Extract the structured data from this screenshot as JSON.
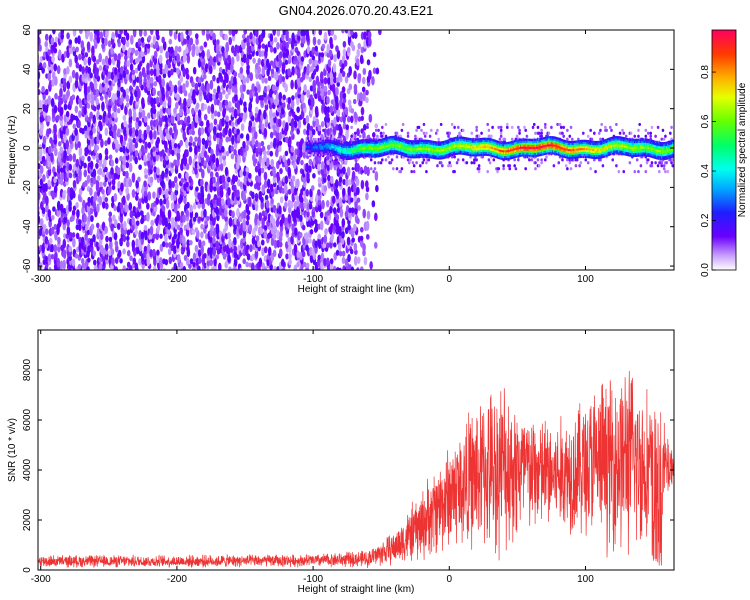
{
  "title": "GN04.2026.070.20.43.E21",
  "chart_data": [
    {
      "type": "heatmap",
      "xlabel": "Height of straight line (km)",
      "ylabel": "Frequency (Hz)",
      "xlim": [
        -302,
        165
      ],
      "ylim": [
        -62,
        60
      ],
      "xticks": [
        -300,
        -200,
        -100,
        0,
        100
      ],
      "yticks": [
        -60,
        -40,
        -20,
        0,
        20,
        40,
        60
      ],
      "colorbar": {
        "label": "Normalized spectral amplitude",
        "range": [
          0.0,
          0.97
        ],
        "ticks": [
          "0.0",
          "0.2",
          "0.4",
          "0.6",
          "0.8"
        ],
        "tick_values": [
          0.0,
          0.2,
          0.4,
          0.6,
          0.8
        ],
        "colormap": "rainbow"
      },
      "band": {
        "x_start": -100,
        "x_end": 165,
        "center_freq": 0,
        "half_width": 4,
        "peak_x": 65
      },
      "noise_region": {
        "x_start": -302,
        "x_end": -50,
        "frequency_range": [
          -62,
          60
        ]
      }
    },
    {
      "type": "line",
      "xlabel": "Height of straight line (km)",
      "ylabel": "SNR (10 * v/v)",
      "xlim": [
        -302,
        165
      ],
      "ylim": [
        0,
        9600
      ],
      "xticks": [
        -300,
        -200,
        -100,
        0,
        100
      ],
      "yticks": [
        0,
        2000,
        4000,
        6000,
        8000
      ],
      "series": [
        {
          "color": "#ee3333",
          "envelope": [
            {
              "x": -300,
              "mean": 350,
              "amp": 250
            },
            {
              "x": -200,
              "mean": 350,
              "amp": 250
            },
            {
              "x": -100,
              "mean": 380,
              "amp": 260
            },
            {
              "x": -60,
              "mean": 450,
              "amp": 350
            },
            {
              "x": -40,
              "mean": 900,
              "amp": 700
            },
            {
              "x": -20,
              "mean": 1800,
              "amp": 1500
            },
            {
              "x": 0,
              "mean": 3000,
              "amp": 2200
            },
            {
              "x": 20,
              "mean": 3800,
              "amp": 3000
            },
            {
              "x": 40,
              "mean": 4200,
              "amp": 3600
            },
            {
              "x": 60,
              "mean": 3900,
              "amp": 2500
            },
            {
              "x": 80,
              "mean": 3800,
              "amp": 2300
            },
            {
              "x": 100,
              "mean": 4200,
              "amp": 3000
            },
            {
              "x": 130,
              "mean": 4500,
              "amp": 4000
            },
            {
              "x": 150,
              "mean": 4000,
              "amp": 3000
            },
            {
              "x": 165,
              "mean": 4200,
              "amp": 800
            }
          ]
        }
      ]
    }
  ]
}
